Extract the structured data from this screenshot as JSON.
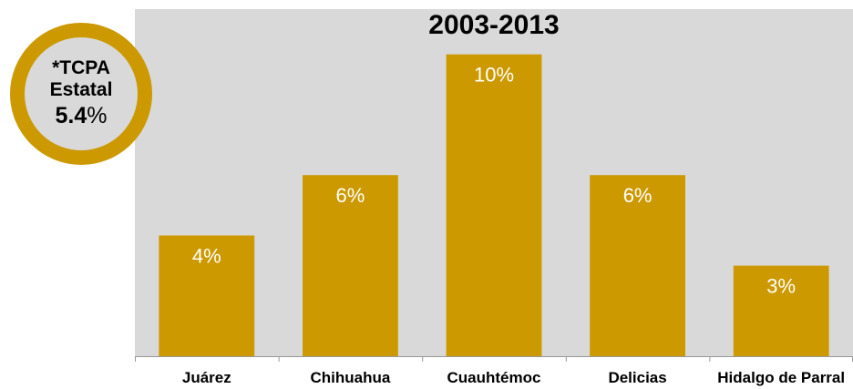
{
  "colors": {
    "bar": "#cc9900",
    "plot_background": "#d9d9d9",
    "bar_label": "#ffffff",
    "axis": "#999999"
  },
  "badge": {
    "line1": "*TCPA",
    "line2": "Estatal",
    "value": "5.4",
    "value_unit": "%"
  },
  "chart_data": {
    "type": "bar",
    "title": "2003-2013",
    "categories": [
      "Juárez",
      "Chihuahua",
      "Cuauhtémoc",
      "Delicias",
      "Hidalgo de Parral"
    ],
    "values": [
      4,
      6,
      10,
      6,
      3
    ],
    "data_labels": [
      "4%",
      "6%",
      "10%",
      "6%",
      "3%"
    ],
    "ylim": [
      0,
      11.5
    ],
    "grid": false,
    "legend": "none"
  }
}
